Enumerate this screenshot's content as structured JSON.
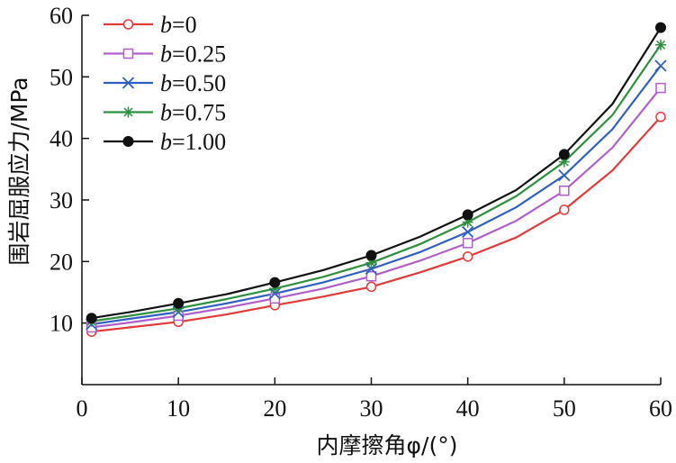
{
  "chart_data": {
    "type": "line",
    "title": "",
    "xlabel": "内摩擦角φ/(°)",
    "ylabel": "围岩屈服应力/MPa",
    "xlim": [
      0,
      60
    ],
    "ylim": [
      0,
      60
    ],
    "xticks": [
      "0",
      "10",
      "20",
      "30",
      "40",
      "50",
      "60"
    ],
    "yticks": [
      "10",
      "20",
      "30",
      "40",
      "50",
      "60"
    ],
    "grid": false,
    "legend_position": "top-left",
    "x": [
      1,
      5,
      10,
      15,
      20,
      25,
      30,
      35,
      40,
      45,
      50,
      55,
      60
    ],
    "series": [
      {
        "name": "b=0",
        "var": "b",
        "eq": "=0",
        "color": "#e03a3a",
        "marker": "circle",
        "values": [
          8.6,
          9.3,
          10.2,
          11.4,
          12.9,
          14.3,
          15.9,
          18.2,
          20.8,
          23.9,
          28.4,
          34.8,
          43.5
        ]
      },
      {
        "name": "b=0.25",
        "var": "b",
        "eq": "=0.25",
        "color": "#b05fc8",
        "marker": "square",
        "values": [
          9.3,
          10.1,
          11.2,
          12.5,
          14.0,
          15.6,
          17.6,
          20.1,
          23.0,
          26.6,
          31.5,
          38.5,
          48.2
        ]
      },
      {
        "name": "b=0.50",
        "var": "b",
        "eq": "=0.50",
        "color": "#2f5fbf",
        "marker": "x",
        "values": [
          9.8,
          10.7,
          11.8,
          13.2,
          14.8,
          16.6,
          18.8,
          21.5,
          24.8,
          28.8,
          34.0,
          41.5,
          51.8
        ]
      },
      {
        "name": "b=0.75",
        "var": "b",
        "eq": "=0.75",
        "color": "#2e8f3e",
        "marker": "asterisk",
        "values": [
          10.3,
          11.2,
          12.4,
          13.9,
          15.6,
          17.5,
          19.8,
          22.8,
          26.4,
          30.6,
          36.2,
          43.8,
          55.2
        ]
      },
      {
        "name": "b=1.00",
        "var": "b",
        "eq": "=1.00",
        "color": "#111111",
        "marker": "filled-circle",
        "values": [
          10.8,
          11.8,
          13.2,
          14.7,
          16.6,
          18.6,
          21.0,
          24.0,
          27.6,
          31.6,
          37.4,
          45.6,
          58.0
        ]
      }
    ],
    "marker_x": [
      1,
      10,
      20,
      30,
      40,
      50,
      60
    ]
  }
}
